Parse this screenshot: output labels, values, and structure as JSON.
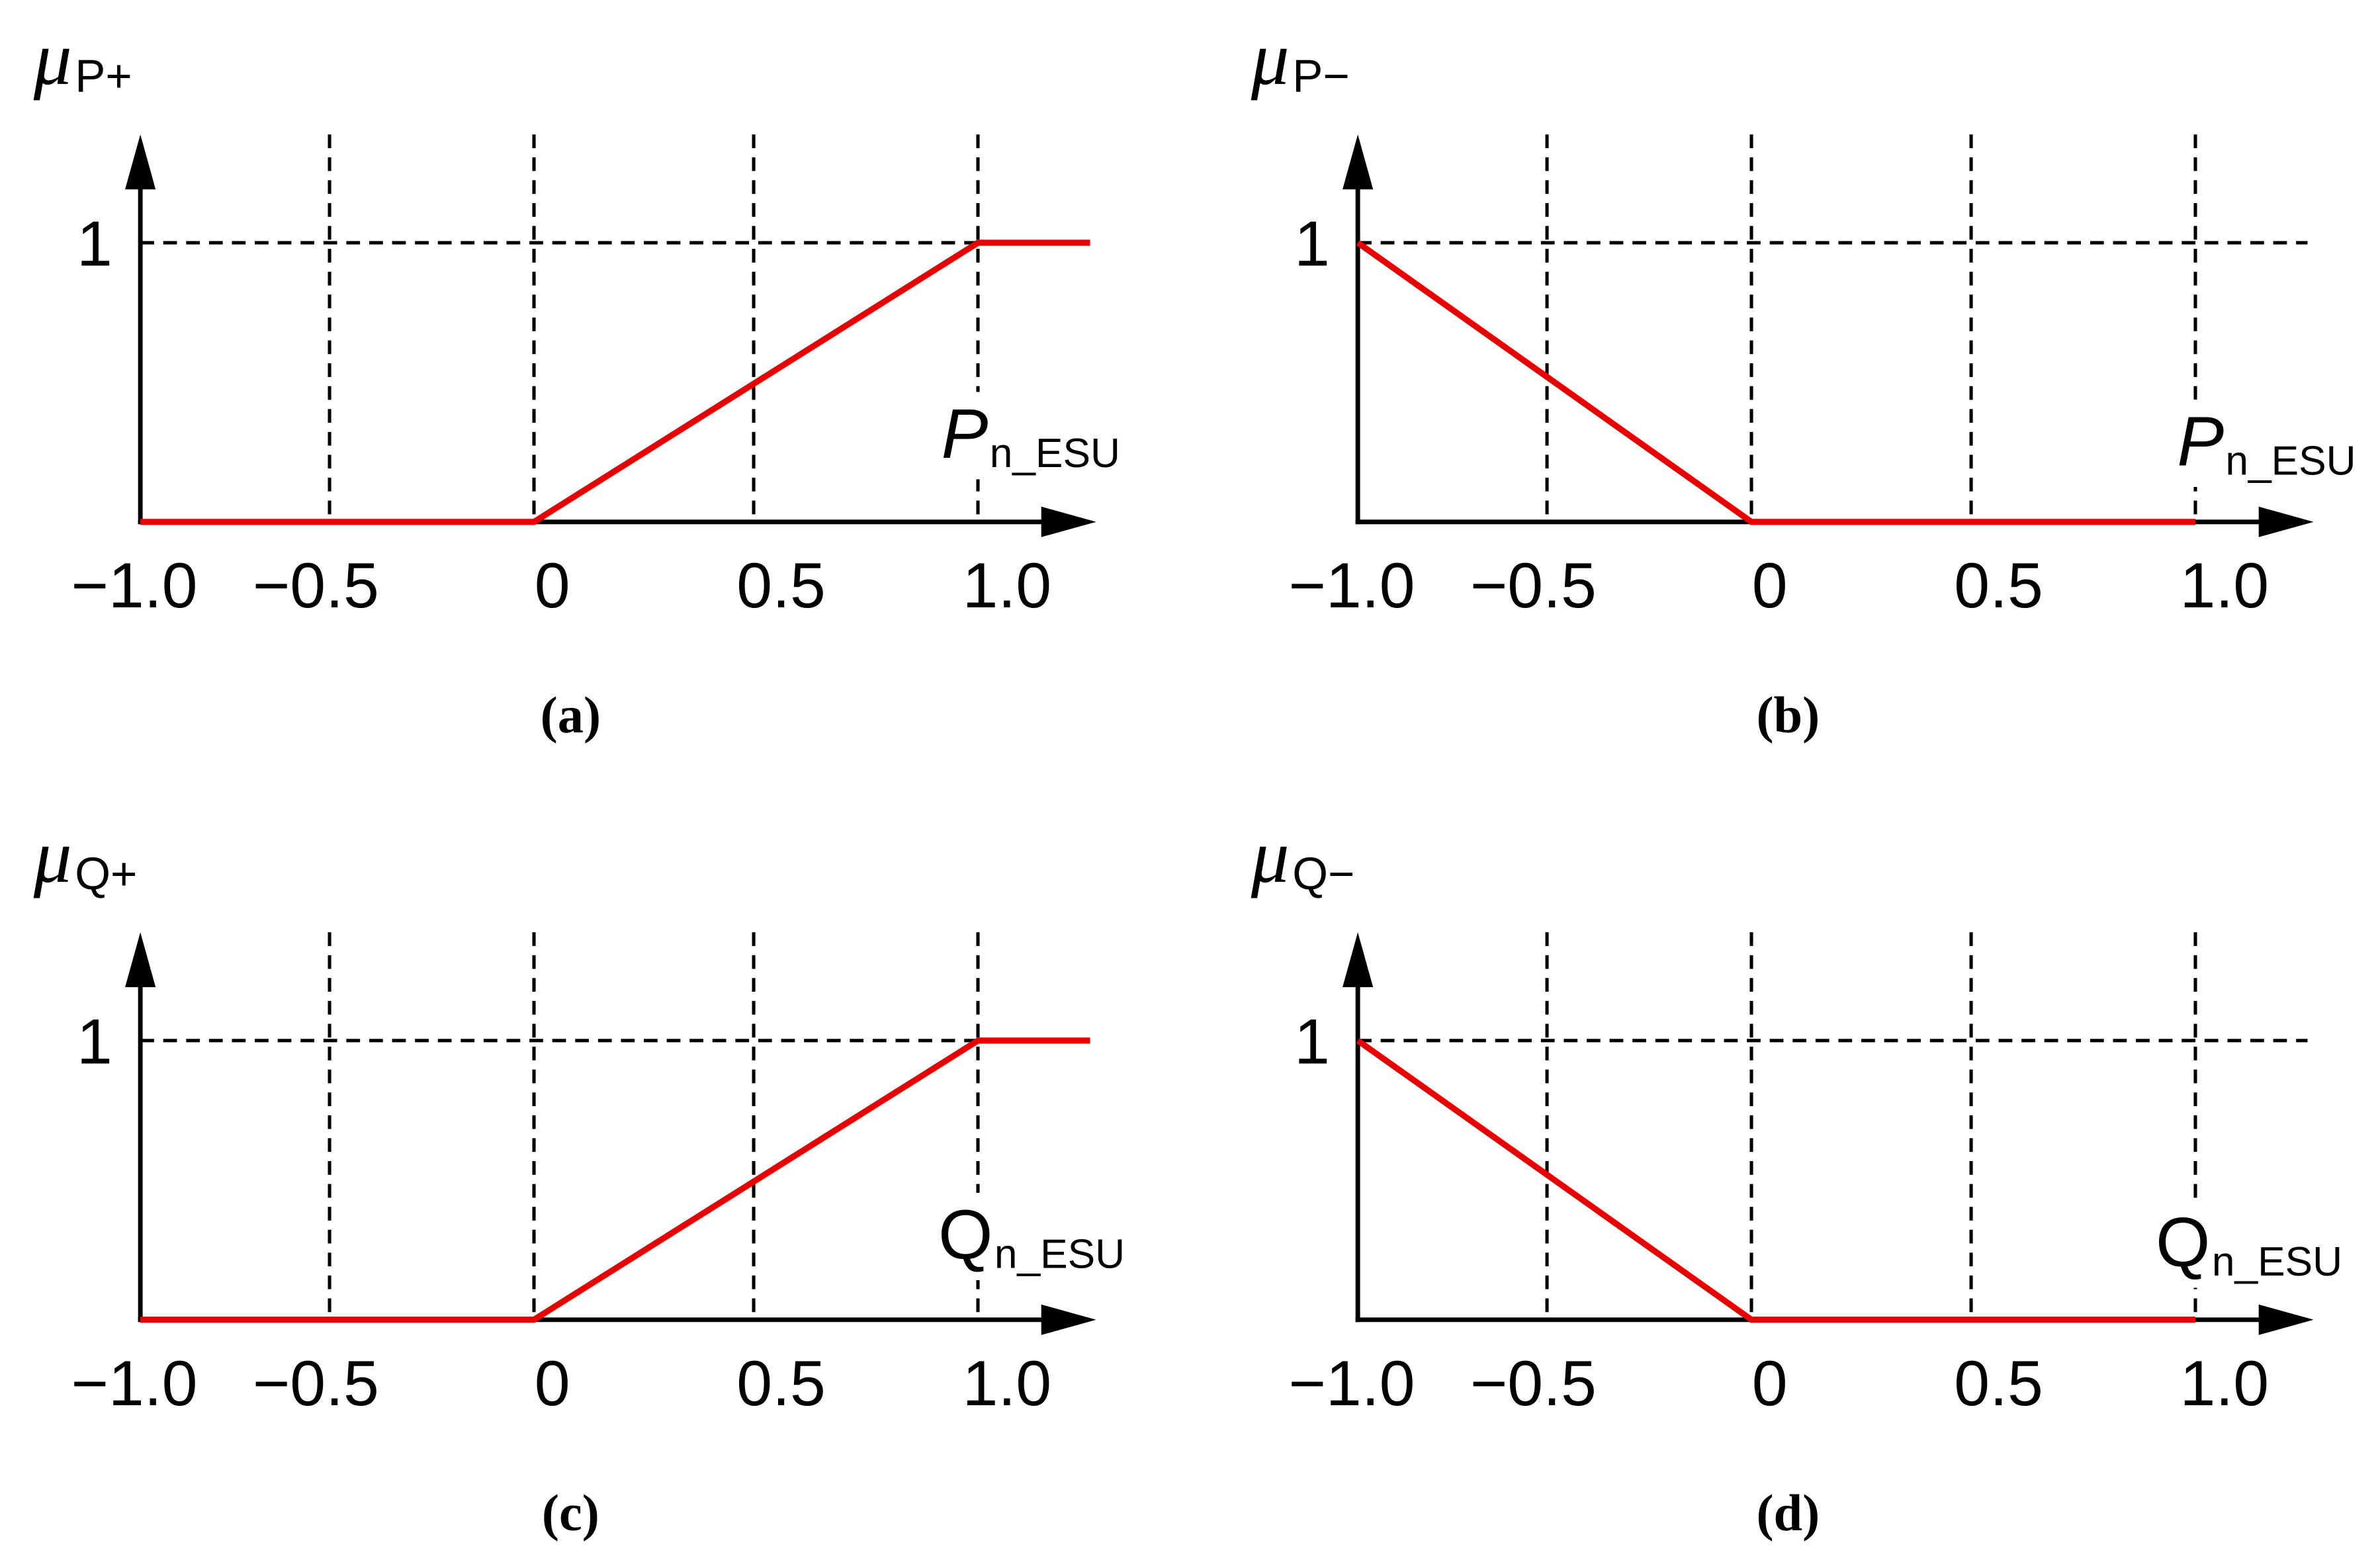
{
  "chart_data": [
    {
      "type": "line",
      "ylabel": {
        "symbol": "μ",
        "subscript": "P+"
      },
      "xlabel": {
        "symbol": "P",
        "subscript": "n_ESU"
      },
      "xticks": [
        -1.0,
        -0.5,
        0,
        0.5,
        1.0
      ],
      "xtick_labels": [
        "−1.0",
        "−0.5",
        "0",
        "0.5",
        "1.0"
      ],
      "yticks": [
        1
      ],
      "ytick_labels": [
        "1"
      ],
      "xlim": [
        -1.0,
        1.25
      ],
      "ylim": [
        0,
        1
      ],
      "grid": true,
      "series": [
        {
          "x": [
            -1.0,
            0,
            1.0,
            1.25
          ],
          "y": [
            0,
            0,
            1,
            1
          ],
          "color": "#e60000"
        }
      ],
      "caption": "(a)"
    },
    {
      "type": "line",
      "ylabel": {
        "symbol": "μ",
        "subscript": "P−"
      },
      "xlabel": {
        "symbol": "P",
        "subscript": "n_ESU"
      },
      "xticks": [
        -1.0,
        -0.5,
        0,
        0.5,
        1.0
      ],
      "xtick_labels": [
        "−1.0",
        "−0.5",
        "0",
        "0.5",
        "1.0"
      ],
      "yticks": [
        1
      ],
      "ytick_labels": [
        "1"
      ],
      "xlim": [
        -1.0,
        1.25
      ],
      "ylim": [
        0,
        1
      ],
      "grid": true,
      "series": [
        {
          "x": [
            -1.0,
            0,
            1.0
          ],
          "y": [
            1,
            0,
            0
          ],
          "color": "#e60000"
        }
      ],
      "caption": "(b)"
    },
    {
      "type": "line",
      "ylabel": {
        "symbol": "μ",
        "subscript": "Q+"
      },
      "xlabel": {
        "symbol": "Q",
        "subscript": "n_ESU"
      },
      "xticks": [
        -1.0,
        -0.5,
        0,
        0.5,
        1.0
      ],
      "xtick_labels": [
        "−1.0",
        "−0.5",
        "0",
        "0.5",
        "1.0"
      ],
      "yticks": [
        1
      ],
      "ytick_labels": [
        "1"
      ],
      "xlim": [
        -1.0,
        1.25
      ],
      "ylim": [
        0,
        1
      ],
      "grid": true,
      "series": [
        {
          "x": [
            -1.0,
            0,
            1.0,
            1.25
          ],
          "y": [
            0,
            0,
            1,
            1
          ],
          "color": "#e60000"
        }
      ],
      "caption": "(c)"
    },
    {
      "type": "line",
      "ylabel": {
        "symbol": "μ",
        "subscript": "Q−"
      },
      "xlabel": {
        "symbol": "Q",
        "subscript": "n_ESU"
      },
      "xticks": [
        -1.0,
        -0.5,
        0,
        0.5,
        1.0
      ],
      "xtick_labels": [
        "−1.0",
        "−0.5",
        "0",
        "0.5",
        "1.0"
      ],
      "yticks": [
        1
      ],
      "ytick_labels": [
        "1"
      ],
      "xlim": [
        -1.0,
        1.25
      ],
      "ylim": [
        0,
        1
      ],
      "grid": true,
      "series": [
        {
          "x": [
            -1.0,
            0,
            1.0
          ],
          "y": [
            1,
            0,
            0
          ],
          "color": "#e60000"
        }
      ],
      "caption": "(d)"
    }
  ]
}
